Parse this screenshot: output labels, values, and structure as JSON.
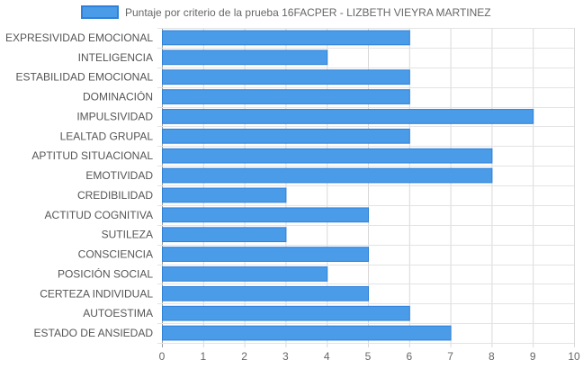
{
  "chart_data": {
    "type": "bar",
    "orientation": "horizontal",
    "legend_position": "top-center",
    "grid": true,
    "xlim": [
      0,
      10
    ],
    "x_ticks": [
      "0",
      "1",
      "2",
      "3",
      "4",
      "5",
      "6",
      "7",
      "8",
      "9",
      "10"
    ],
    "categories": [
      "EXPRESIVIDAD EMOCIONAL",
      "INTELIGENCIA",
      "ESTABILIDAD EMOCIONAL",
      "DOMINACIÓN",
      "IMPULSIVIDAD",
      "LEALTAD GRUPAL",
      "APTITUD SITUACIONAL",
      "EMOTIVIDAD",
      "CREDIBILIDAD",
      "ACTITUD COGNITIVA",
      "SUTILEZA",
      "CONSCIENCIA",
      "POSICIÓN SOCIAL",
      "CERTEZA INDIVIDUAL",
      "AUTOESTIMA",
      "ESTADO DE ANSIEDAD"
    ],
    "series": [
      {
        "name": "Puntaje por criterio de la prueba 16FACPER - LIZBETH VIEYRA MARTINEZ",
        "values": [
          6,
          4,
          6,
          6,
          9,
          6,
          8,
          8,
          3,
          5,
          3,
          5,
          4,
          5,
          6,
          7
        ],
        "color": "#4a9be8",
        "border_color": "#2f80d8"
      }
    ]
  }
}
